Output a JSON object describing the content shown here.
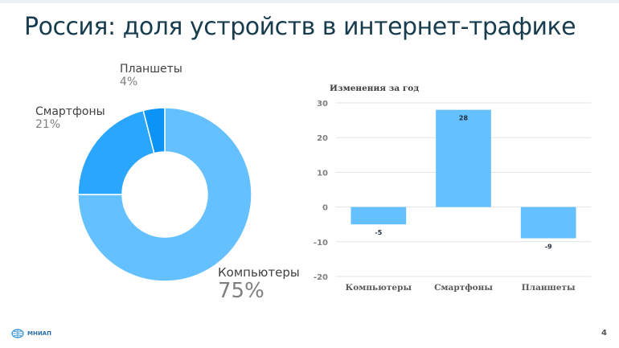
{
  "slide": {
    "title": "Россия: доля устройств в интернет-трафике",
    "page_number": "4",
    "logo_text": "МНИАП"
  },
  "chart_data": [
    {
      "type": "pie",
      "donut": true,
      "title": "",
      "slices": [
        {
          "name": "Компьютеры",
          "value": 75,
          "label": "75%",
          "color": "#64c0ff"
        },
        {
          "name": "Смартфоны",
          "value": 21,
          "label": "21%",
          "color": "#2aa6ff"
        },
        {
          "name": "Планшеты",
          "value": 4,
          "label": "4%",
          "color": "#0b93f5"
        }
      ]
    },
    {
      "type": "bar",
      "title": "Изменения за год",
      "categories": [
        "Компьютеры",
        "Смартфоны",
        "Планшеты"
      ],
      "values": [
        -5,
        28,
        -9
      ],
      "data_labels": [
        "-5",
        "28",
        "-9"
      ],
      "ylim": [
        -20,
        30
      ],
      "yticks": [
        30,
        20,
        10,
        0,
        -10,
        -20
      ],
      "grid": true,
      "color": "#64c0ff"
    }
  ]
}
